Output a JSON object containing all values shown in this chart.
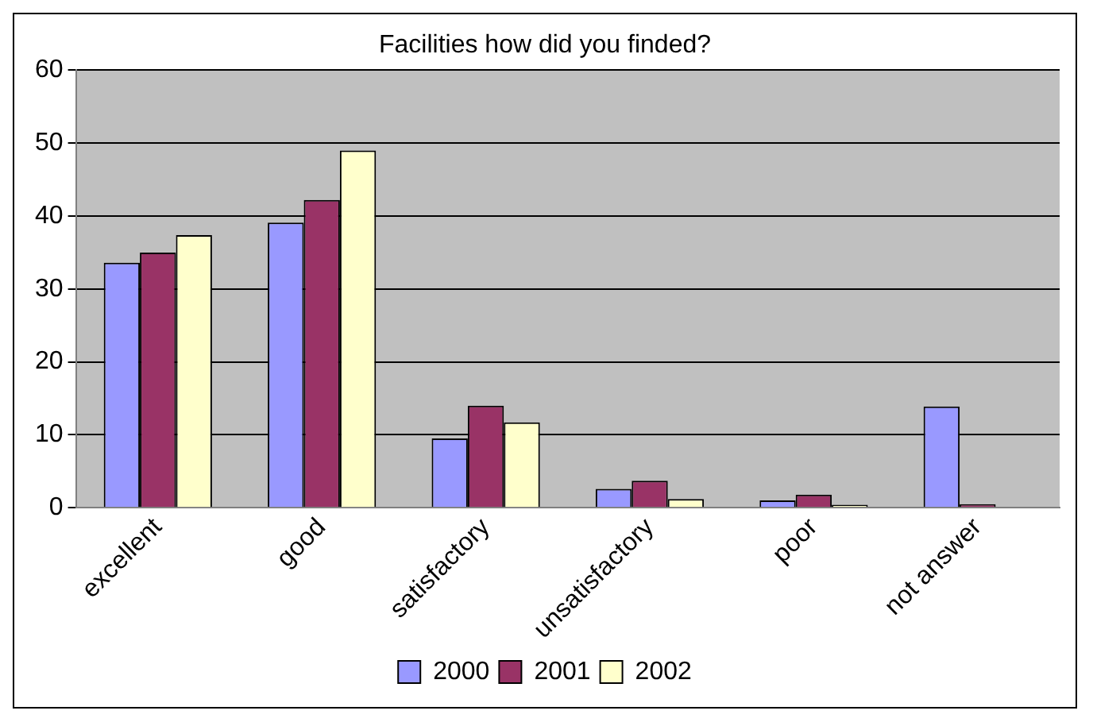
{
  "chart_data": {
    "type": "bar",
    "title": "Facilities how did you finded?",
    "categories": [
      "excellent",
      "good",
      "satisfactory",
      "unsatisfactory",
      "poor",
      "not answer"
    ],
    "series": [
      {
        "name": "2000",
        "color": "#9999ff",
        "values": [
          33.6,
          39.1,
          9.5,
          2.6,
          1.0,
          13.9
        ]
      },
      {
        "name": "2001",
        "color": "#993366",
        "values": [
          35.0,
          42.2,
          14.0,
          3.7,
          1.8,
          0.5
        ]
      },
      {
        "name": "2002",
        "color": "#ffffcc",
        "values": [
          37.4,
          49.0,
          11.7,
          1.2,
          0.4,
          null
        ]
      }
    ],
    "ylim": [
      0,
      60
    ],
    "yticks": [
      0,
      10,
      20,
      30,
      40,
      50,
      60
    ],
    "grid": "y",
    "legend": "bottom"
  }
}
